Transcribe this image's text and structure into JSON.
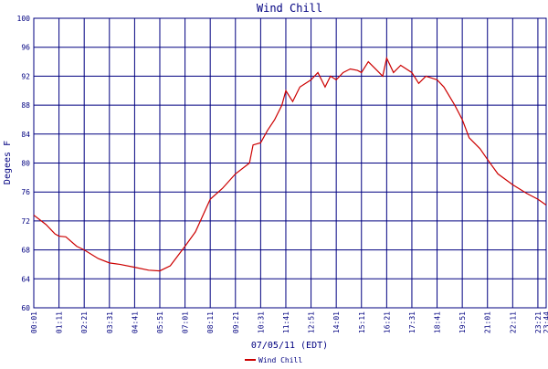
{
  "chart_data": {
    "type": "line",
    "title": "Wind Chill",
    "y_label": "Degees F",
    "x_label": "07/05/11 (EDT)",
    "xlim": [
      "00:01",
      "23:44"
    ],
    "xticks": [
      "00:01",
      "01:11",
      "02:21",
      "03:31",
      "04:41",
      "05:51",
      "07:01",
      "08:11",
      "09:21",
      "10:31",
      "11:41",
      "12:51",
      "14:01",
      "15:11",
      "16:21",
      "17:31",
      "18:41",
      "19:51",
      "21:01",
      "22:11",
      "23:21",
      "23:44"
    ],
    "ylim": [
      60,
      100
    ],
    "yticks": [
      60,
      64,
      68,
      72,
      76,
      80,
      84,
      88,
      92,
      96,
      100
    ],
    "grid": true,
    "legend": "bottom",
    "x": [
      "00:01",
      "00:35",
      "01:00",
      "01:11",
      "01:30",
      "02:00",
      "02:21",
      "03:00",
      "03:31",
      "04:00",
      "04:41",
      "05:20",
      "05:51",
      "06:20",
      "07:01",
      "07:30",
      "08:11",
      "08:45",
      "09:21",
      "10:00",
      "10:10",
      "10:31",
      "10:50",
      "11:10",
      "11:30",
      "11:41",
      "12:00",
      "12:20",
      "12:51",
      "13:10",
      "13:30",
      "13:45",
      "14:01",
      "14:20",
      "14:40",
      "15:00",
      "15:11",
      "15:30",
      "15:50",
      "16:10",
      "16:21",
      "16:40",
      "17:00",
      "17:31",
      "17:50",
      "18:10",
      "18:41",
      "19:00",
      "19:30",
      "19:51",
      "20:10",
      "20:40",
      "21:01",
      "21:30",
      "22:11",
      "22:50",
      "23:21",
      "23:44"
    ],
    "series": [
      {
        "name": "Wind Chill",
        "color": "#cc0000",
        "values": [
          72.8,
          71.5,
          70.2,
          69.9,
          69.8,
          68.5,
          68.0,
          66.8,
          66.2,
          66.0,
          65.6,
          65.2,
          65.1,
          65.8,
          68.5,
          70.5,
          75.0,
          76.5,
          78.5,
          80.0,
          82.5,
          82.8,
          84.5,
          86.0,
          88.0,
          90.0,
          88.5,
          90.5,
          91.5,
          92.5,
          90.5,
          92.0,
          91.5,
          92.5,
          93.0,
          92.8,
          92.5,
          94.0,
          93.0,
          92.0,
          94.5,
          92.5,
          93.5,
          92.5,
          91.0,
          92.0,
          91.5,
          90.5,
          88.0,
          86.0,
          83.5,
          82.0,
          80.5,
          78.5,
          77.0,
          75.8,
          75.0,
          74.2
        ]
      }
    ]
  }
}
